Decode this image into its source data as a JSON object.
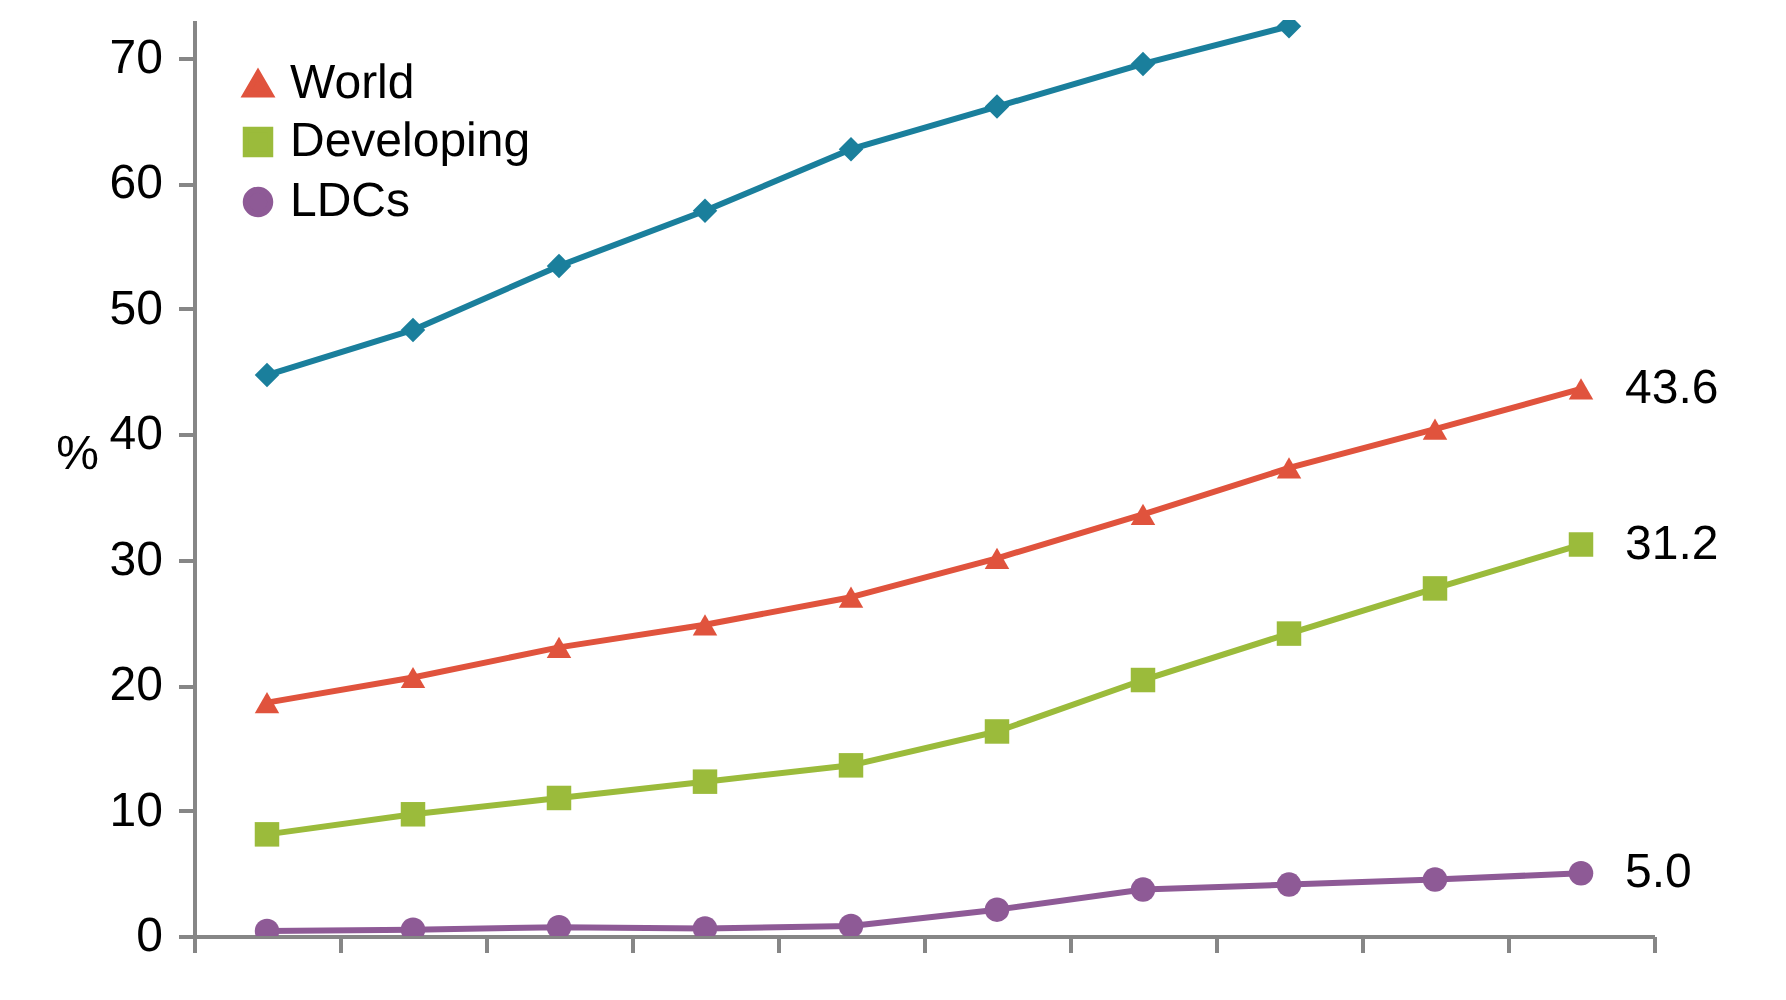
{
  "chart_data": {
    "type": "line",
    "ylabel": "%",
    "categories": [
      null,
      null,
      null,
      null,
      null,
      null,
      null,
      null,
      null,
      null
    ],
    "tick_labels": "y",
    "ylim": [
      0,
      73
    ],
    "yticks": [
      0,
      10,
      20,
      30,
      40,
      50,
      60,
      70
    ],
    "grid": false,
    "legend": "top left",
    "line_style": "solid",
    "series": [
      {
        "color": "#1a7f9c",
        "marker": "diamond",
        "values": [
          44.7,
          48.3,
          53.4,
          57.8,
          62.7,
          66.1,
          69.5,
          72.5,
          null,
          null
        ]
      },
      {
        "name": "World",
        "color": "#e0533d",
        "marker": "triangle",
        "values": [
          18.6,
          20.6,
          23.0,
          24.8,
          27.0,
          30.1,
          33.6,
          37.3,
          40.4,
          43.6
        ],
        "value_labels": [
          null,
          null,
          null,
          null,
          null,
          null,
          null,
          null,
          null,
          "43.6"
        ]
      },
      {
        "name": "Developing",
        "color": "#9bbb3b",
        "marker": "square",
        "values": [
          8.1,
          9.7,
          11.0,
          12.3,
          13.6,
          16.3,
          20.4,
          24.1,
          27.7,
          31.2
        ],
        "value_labels": [
          null,
          null,
          null,
          null,
          null,
          null,
          null,
          null,
          null,
          "31.2"
        ]
      },
      {
        "name": "LDCs",
        "color": "#8e5a96",
        "marker": "circle",
        "values": [
          0.4,
          0.5,
          0.7,
          0.6,
          0.8,
          2.1,
          3.7,
          4.1,
          4.5,
          5.0
        ],
        "value_labels": [
          null,
          null,
          null,
          null,
          null,
          null,
          null,
          null,
          null,
          "5.0"
        ]
      }
    ]
  }
}
